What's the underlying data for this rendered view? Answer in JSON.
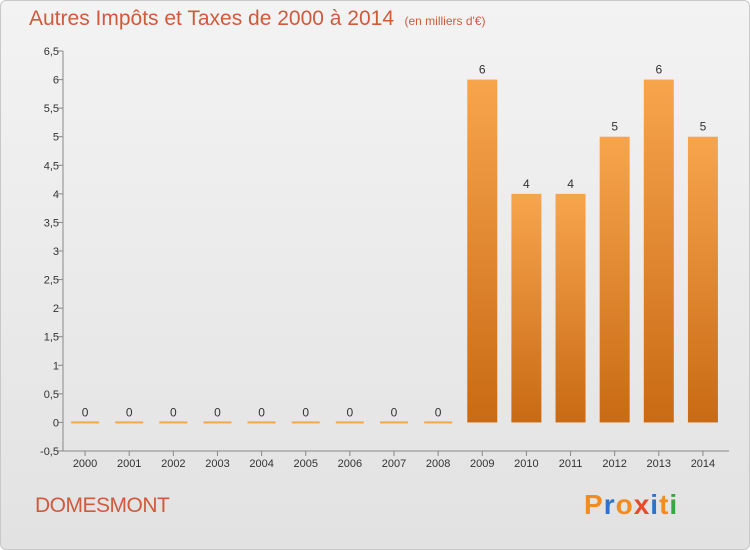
{
  "header": {
    "title": "Autres Impôts et Taxes de 2000 à 2014",
    "subtitle": "(en milliers d'€)"
  },
  "footer": {
    "commune": "DOMESMONT",
    "logo_letters": [
      "P",
      "r",
      "o",
      "x",
      "i",
      "t",
      "i"
    ],
    "logo_colors": [
      "#f28c1e",
      "#2d73c8",
      "#f28c1e",
      "#e84a2a",
      "#2d73c8",
      "#f28c1e",
      "#3aa640"
    ]
  },
  "chart_data": {
    "type": "bar",
    "title": "Autres Impôts et Taxes de 2000 à 2014",
    "subtitle": "(en milliers d'€)",
    "categories": [
      "2000",
      "2001",
      "2002",
      "2003",
      "2004",
      "2005",
      "2006",
      "2007",
      "2008",
      "2009",
      "2010",
      "2011",
      "2012",
      "2013",
      "2014"
    ],
    "values": [
      0,
      0,
      0,
      0,
      0,
      0,
      0,
      0,
      0,
      6,
      4,
      4,
      5,
      6,
      5
    ],
    "data_labels": [
      "0",
      "0",
      "0",
      "0",
      "0",
      "0",
      "0",
      "0",
      "0",
      "6",
      "4",
      "4",
      "5",
      "6",
      "5"
    ],
    "ylim": [
      -0.5,
      6.5
    ],
    "yticks": [
      "-0,5",
      "0",
      "0,5",
      "1",
      "1,5",
      "2",
      "2,5",
      "3",
      "3,5",
      "4",
      "4,5",
      "5",
      "5,5",
      "6",
      "6,5"
    ],
    "ytick_values": [
      -0.5,
      0,
      0.5,
      1,
      1.5,
      2,
      2.5,
      3,
      3.5,
      4,
      4.5,
      5,
      5.5,
      6,
      6.5
    ],
    "grid": false,
    "legend": "none",
    "bar_color_light": "#f7a54d",
    "bar_color_dark": "#c96a14",
    "axis_color": "#888888"
  }
}
